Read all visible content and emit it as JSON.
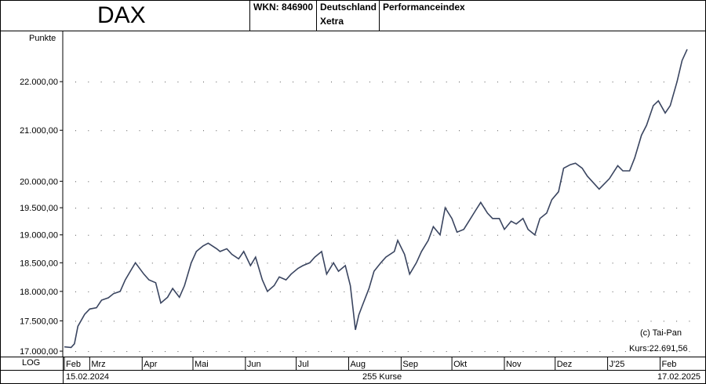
{
  "header": {
    "title": "DAX",
    "wkn": "WKN: 846900",
    "country": "Deutschland",
    "exchange": "Xetra",
    "index_type": "Performanceindex"
  },
  "footer": {
    "scale": "LOG",
    "start_date": "15.02.2024",
    "count": "255 Kurse",
    "end_date": "17.02.2025"
  },
  "annotations": {
    "copyright": "(c) Tai-Pan",
    "last_price": "Kurs:22.691,56"
  },
  "chart_data": {
    "type": "line",
    "ylabel": "Punkte",
    "yscale": "log",
    "ylim": [
      16950,
      23050
    ],
    "y_ticks": [
      17000,
      17500,
      18000,
      18500,
      19000,
      19500,
      20000,
      21000,
      22000
    ],
    "y_tick_labels": [
      "17.000,00",
      "17.500,00",
      "18.000,00",
      "18.500,00",
      "19.000,00",
      "19.500,00",
      "20.000,00",
      "21.000,00",
      "22.000,00"
    ],
    "x_month_labels": [
      "Feb",
      "Mrz",
      "Apr",
      "Mai",
      "Jun",
      "Jul",
      "Aug",
      "Sep",
      "Okt",
      "Nov",
      "Dez",
      "J'25",
      "Feb"
    ],
    "grid": "dotted",
    "series": [
      {
        "color": "#3a4560",
        "dates": [
          "2024-02-15",
          "2024-02-19",
          "2024-02-21",
          "2024-02-23",
          "2024-02-27",
          "2024-03-01",
          "2024-03-05",
          "2024-03-08",
          "2024-03-12",
          "2024-03-15",
          "2024-03-19",
          "2024-03-22",
          "2024-03-26",
          "2024-03-28",
          "2024-04-02",
          "2024-04-05",
          "2024-04-09",
          "2024-04-12",
          "2024-04-16",
          "2024-04-19",
          "2024-04-23",
          "2024-04-26",
          "2024-04-30",
          "2024-05-03",
          "2024-05-07",
          "2024-05-10",
          "2024-05-15",
          "2024-05-17",
          "2024-05-21",
          "2024-05-24",
          "2024-05-28",
          "2024-05-31",
          "2024-06-04",
          "2024-06-07",
          "2024-06-11",
          "2024-06-14",
          "2024-06-18",
          "2024-06-21",
          "2024-06-25",
          "2024-06-28",
          "2024-07-02",
          "2024-07-05",
          "2024-07-09",
          "2024-07-12",
          "2024-07-16",
          "2024-07-19",
          "2024-07-23",
          "2024-07-26",
          "2024-07-30",
          "2024-08-02",
          "2024-08-05",
          "2024-08-07",
          "2024-08-09",
          "2024-08-13",
          "2024-08-16",
          "2024-08-20",
          "2024-08-23",
          "2024-08-28",
          "2024-08-30",
          "2024-09-03",
          "2024-09-06",
          "2024-09-10",
          "2024-09-13",
          "2024-09-17",
          "2024-09-20",
          "2024-09-24",
          "2024-09-27",
          "2024-10-01",
          "2024-10-04",
          "2024-10-08",
          "2024-10-11",
          "2024-10-15",
          "2024-10-18",
          "2024-10-22",
          "2024-10-25",
          "2024-10-29",
          "2024-11-01",
          "2024-11-05",
          "2024-11-08",
          "2024-11-12",
          "2024-11-15",
          "2024-11-19",
          "2024-11-22",
          "2024-11-26",
          "2024-11-29",
          "2024-12-03",
          "2024-12-06",
          "2024-12-10",
          "2024-12-13",
          "2024-12-17",
          "2024-12-20",
          "2024-12-27",
          "2025-01-02",
          "2025-01-07",
          "2025-01-10",
          "2025-01-14",
          "2025-01-17",
          "2025-01-21",
          "2025-01-24",
          "2025-01-28",
          "2025-01-31",
          "2025-02-04",
          "2025-02-07",
          "2025-02-11",
          "2025-02-14",
          "2025-02-17"
        ],
        "values": [
          17070,
          17060,
          17120,
          17410,
          17610,
          17700,
          17720,
          17850,
          17890,
          17960,
          18000,
          18200,
          18400,
          18500,
          18300,
          18200,
          18150,
          17800,
          17900,
          18050,
          17900,
          18100,
          18500,
          18700,
          18800,
          18850,
          18750,
          18700,
          18750,
          18650,
          18570,
          18700,
          18450,
          18600,
          18200,
          18000,
          18100,
          18250,
          18200,
          18300,
          18400,
          18450,
          18500,
          18600,
          18700,
          18300,
          18500,
          18350,
          18450,
          18100,
          17350,
          17600,
          17750,
          18050,
          18350,
          18500,
          18600,
          18700,
          18900,
          18650,
          18300,
          18500,
          18700,
          18900,
          19150,
          19000,
          19500,
          19300,
          19050,
          19100,
          19250,
          19450,
          19600,
          19400,
          19300,
          19300,
          19100,
          19250,
          19200,
          19300,
          19100,
          19000,
          19300,
          19400,
          19650,
          19800,
          20250,
          20320,
          20350,
          20250,
          20100,
          19850,
          20050,
          20300,
          20200,
          20200,
          20450,
          20900,
          21100,
          21500,
          21600,
          21350,
          21500,
          22000,
          22450,
          22692
        ]
      }
    ]
  }
}
